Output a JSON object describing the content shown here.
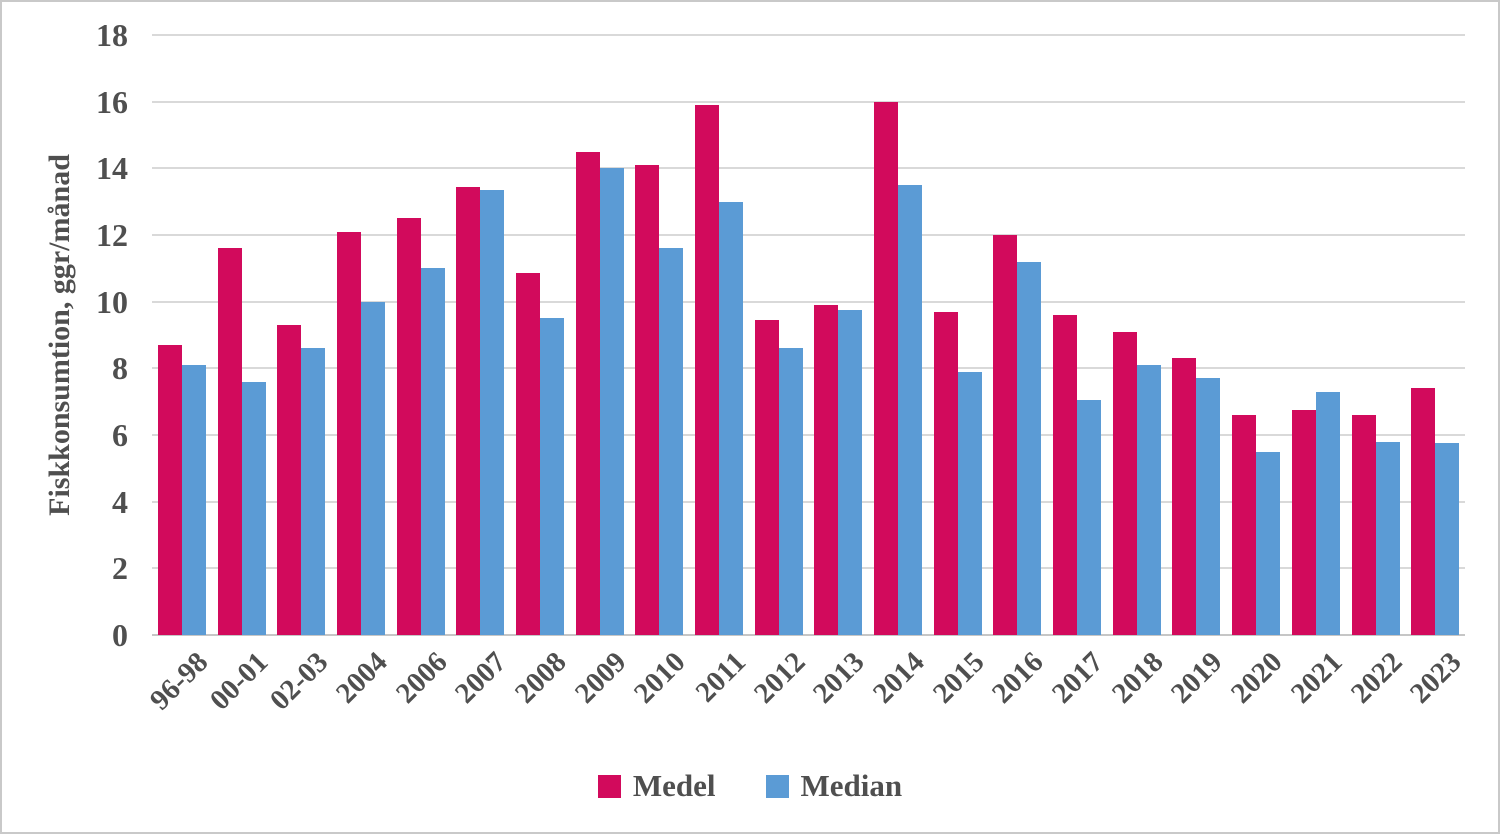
{
  "page": {
    "background": "#ffffff",
    "border_color": "#c9c9c9"
  },
  "chart_data": {
    "type": "bar",
    "title": "",
    "xlabel": "",
    "ylabel": "Fiskkonsumtion, ggr/månad",
    "ylim": [
      0,
      18
    ],
    "ytick_step": 2,
    "grid": true,
    "legend_position": "bottom",
    "text_color": "#4f4f4f",
    "gridline_color": "#d9d9d9",
    "axisline_color": "#c6c6c6",
    "categories": [
      "96-98",
      "00-01",
      "02-03",
      "2004",
      "2006",
      "2007",
      "2008",
      "2009",
      "2010",
      "2011",
      "2012",
      "2013",
      "2014",
      "2015",
      "2016",
      "2017",
      "2018",
      "2019",
      "2020",
      "2021",
      "2022",
      "2023"
    ],
    "series": [
      {
        "name": "Medel",
        "color": "#d20a5c",
        "values": [
          8.7,
          11.6,
          9.3,
          12.1,
          12.5,
          13.45,
          10.85,
          14.5,
          14.1,
          15.9,
          9.45,
          9.9,
          16.0,
          9.7,
          12.0,
          9.6,
          9.1,
          8.3,
          6.6,
          6.75,
          6.6,
          7.4
        ]
      },
      {
        "name": "Median",
        "color": "#5b9bd5",
        "values": [
          8.1,
          7.6,
          8.6,
          10.0,
          11.0,
          13.35,
          9.5,
          14.0,
          11.6,
          13.0,
          8.6,
          9.75,
          13.5,
          7.9,
          11.2,
          7.05,
          8.1,
          7.7,
          5.5,
          7.3,
          5.8,
          5.75
        ]
      }
    ]
  }
}
